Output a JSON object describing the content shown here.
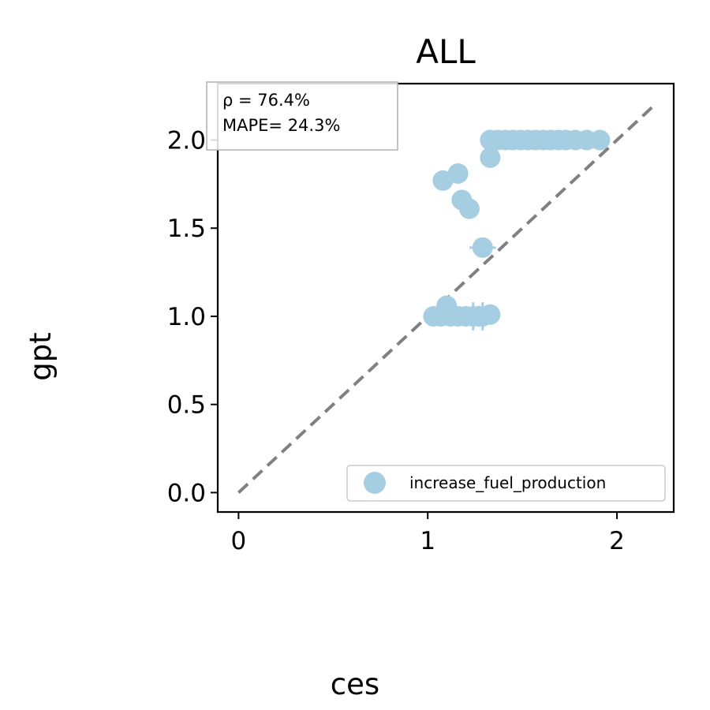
{
  "chart_data": {
    "type": "scatter",
    "title": "ALL",
    "xlabel": "ces",
    "ylabel": "gpt",
    "xlim": [
      -0.11,
      2.3
    ],
    "ylim": [
      -0.11,
      2.32
    ],
    "xticks": [
      0,
      1,
      2
    ],
    "xtick_labels": [
      "0",
      "1",
      "2"
    ],
    "yticks": [
      0.0,
      0.5,
      1.0,
      1.5,
      2.0
    ],
    "ytick_labels": [
      "0.0",
      "0.5",
      "1.0",
      "1.5",
      "2.0"
    ],
    "grid": false,
    "legend_position": "lower-right",
    "annotations": {
      "rho": "ρ = 76.4%",
      "mape": "MAPE= 24.3%"
    },
    "reference_line": {
      "style": "dashed",
      "color": "#808080",
      "from": [
        0,
        0
      ],
      "to": [
        2.2,
        2.2
      ]
    },
    "series": [
      {
        "name": "increase_fuel_production",
        "color": "#a6cee3",
        "points": [
          {
            "x": 1.33,
            "y": 2.0,
            "xerr": 0.02,
            "yerr": 0.0
          },
          {
            "x": 1.37,
            "y": 2.0,
            "xerr": 0.03,
            "yerr": 0.02
          },
          {
            "x": 1.41,
            "y": 2.0,
            "xerr": 0.02,
            "yerr": 0.03
          },
          {
            "x": 1.45,
            "y": 2.0,
            "xerr": 0.03,
            "yerr": 0.02
          },
          {
            "x": 1.49,
            "y": 2.0,
            "xerr": 0.02,
            "yerr": 0.04
          },
          {
            "x": 1.53,
            "y": 2.0,
            "xerr": 0.03,
            "yerr": 0.03
          },
          {
            "x": 1.57,
            "y": 2.0,
            "xerr": 0.02,
            "yerr": 0.02
          },
          {
            "x": 1.61,
            "y": 2.0,
            "xerr": 0.03,
            "yerr": 0.04
          },
          {
            "x": 1.65,
            "y": 2.0,
            "xerr": 0.02,
            "yerr": 0.05
          },
          {
            "x": 1.69,
            "y": 2.0,
            "xerr": 0.03,
            "yerr": 0.03
          },
          {
            "x": 1.73,
            "y": 2.0,
            "xerr": 0.02,
            "yerr": 0.04
          },
          {
            "x": 1.78,
            "y": 2.0,
            "xerr": 0.03,
            "yerr": 0.02
          },
          {
            "x": 1.84,
            "y": 2.0,
            "xerr": 0.02,
            "yerr": 0.0
          },
          {
            "x": 1.91,
            "y": 2.0,
            "xerr": 0.0,
            "yerr": 0.0
          },
          {
            "x": 1.33,
            "y": 1.9,
            "xerr": 0.0,
            "yerr": 0.0
          },
          {
            "x": 1.16,
            "y": 1.81,
            "xerr": 0.04,
            "yerr": 0.0
          },
          {
            "x": 1.08,
            "y": 1.77,
            "xerr": 0.03,
            "yerr": 0.0
          },
          {
            "x": 1.18,
            "y": 1.66,
            "xerr": 0.04,
            "yerr": 0.02
          },
          {
            "x": 1.22,
            "y": 1.61,
            "xerr": 0.04,
            "yerr": 0.0
          },
          {
            "x": 1.29,
            "y": 1.39,
            "xerr": 0.07,
            "yerr": 0.0
          },
          {
            "x": 1.03,
            "y": 1.0,
            "xerr": 0.03,
            "yerr": 0.0
          },
          {
            "x": 1.07,
            "y": 1.0,
            "xerr": 0.02,
            "yerr": 0.02
          },
          {
            "x": 1.1,
            "y": 1.06,
            "xerr": 0.03,
            "yerr": 0.0
          },
          {
            "x": 1.12,
            "y": 1.0,
            "xerr": 0.02,
            "yerr": 0.03
          },
          {
            "x": 1.16,
            "y": 1.0,
            "xerr": 0.03,
            "yerr": 0.04
          },
          {
            "x": 1.2,
            "y": 1.0,
            "xerr": 0.02,
            "yerr": 0.05
          },
          {
            "x": 1.24,
            "y": 1.0,
            "xerr": 0.03,
            "yerr": 0.08
          },
          {
            "x": 1.27,
            "y": 1.0,
            "xerr": 0.02,
            "yerr": 0.06
          },
          {
            "x": 1.29,
            "y": 1.0,
            "xerr": 0.03,
            "yerr": 0.08
          },
          {
            "x": 1.33,
            "y": 1.01,
            "xerr": 0.02,
            "yerr": 0.0
          }
        ]
      }
    ]
  }
}
